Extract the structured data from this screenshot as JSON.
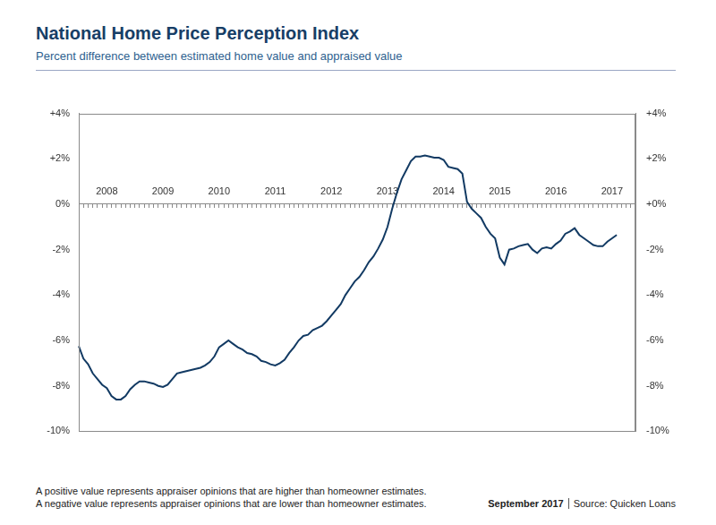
{
  "chart_data": {
    "type": "line",
    "title": "National Home Price Perception Index",
    "subtitle": "Percent difference between estimated home value and appraised value",
    "categories": [
      null,
      null,
      null,
      null,
      null,
      null,
      "2008",
      null,
      null,
      null,
      null,
      null,
      null,
      null,
      null,
      null,
      null,
      null,
      "2009",
      null,
      null,
      null,
      null,
      null,
      null,
      null,
      null,
      null,
      null,
      null,
      "2010",
      null,
      null,
      null,
      null,
      null,
      null,
      null,
      null,
      null,
      null,
      null,
      "2011",
      null,
      null,
      null,
      null,
      null,
      null,
      null,
      null,
      null,
      null,
      null,
      "2012",
      null,
      null,
      null,
      null,
      null,
      null,
      null,
      null,
      null,
      null,
      null,
      "2013",
      null,
      null,
      null,
      null,
      null,
      null,
      null,
      null,
      null,
      null,
      null,
      "2014",
      null,
      null,
      null,
      null,
      null,
      null,
      null,
      null,
      null,
      null,
      null,
      "2015",
      null,
      null,
      null,
      null,
      null,
      null,
      null,
      null,
      null,
      null,
      null,
      "2016",
      null,
      null,
      null,
      null,
      null,
      null,
      null,
      null,
      null,
      null,
      null,
      "2017",
      null,
      null,
      null,
      null,
      null
    ],
    "values": [
      -6.25,
      -6.8,
      -7.05,
      -7.45,
      -7.7,
      -7.95,
      -8.1,
      -8.45,
      -8.6,
      -8.6,
      -8.45,
      -8.15,
      -7.95,
      -7.8,
      -7.8,
      -7.85,
      -7.9,
      -8.0,
      -8.05,
      -7.95,
      -7.7,
      -7.45,
      -7.4,
      -7.35,
      -7.3,
      -7.25,
      -7.2,
      -7.1,
      -6.95,
      -6.7,
      -6.3,
      -6.15,
      -6.0,
      -6.15,
      -6.3,
      -6.4,
      -6.55,
      -6.6,
      -6.7,
      -6.9,
      -6.95,
      -7.05,
      -7.1,
      -7.0,
      -6.85,
      -6.55,
      -6.3,
      -6.0,
      -5.8,
      -5.75,
      -5.55,
      -5.45,
      -5.35,
      -5.15,
      -4.9,
      -4.65,
      -4.4,
      -4.0,
      -3.7,
      -3.4,
      -3.2,
      -2.9,
      -2.55,
      -2.3,
      -1.95,
      -1.55,
      -1.0,
      -0.2,
      0.5,
      1.1,
      1.5,
      1.9,
      2.1,
      2.1,
      2.15,
      2.1,
      2.05,
      2.05,
      1.95,
      1.65,
      1.6,
      1.55,
      1.35,
      0.1,
      -0.2,
      -0.4,
      -0.6,
      -1.0,
      -1.3,
      -1.5,
      -2.35,
      -2.65,
      -2.0,
      -1.95,
      -1.85,
      -1.8,
      -1.75,
      -2.0,
      -2.15,
      -1.95,
      -1.9,
      -1.95,
      -1.75,
      -1.6,
      -1.3,
      -1.2,
      -1.05,
      -1.35,
      -1.5,
      -1.65,
      -1.8,
      -1.85,
      -1.85,
      -1.65,
      -1.5,
      -1.35,
      null,
      null,
      null,
      null
    ],
    "color": "#123a63",
    "ylim": [
      -10,
      4
    ],
    "yticks": [
      {
        "value": -10,
        "label": "-10%"
      },
      {
        "value": -8,
        "label": "-8%"
      },
      {
        "value": -6,
        "label": "-6%"
      },
      {
        "value": -4,
        "label": "-4%"
      },
      {
        "value": -2,
        "label": "-2%"
      },
      {
        "value": 0,
        "label": "0%"
      },
      {
        "value": 2,
        "label": "+2%"
      },
      {
        "value": 4,
        "label": "+4%"
      }
    ],
    "y2lim": [
      -10,
      4
    ],
    "y2ticks": [
      {
        "value": -10,
        "label": "-10%"
      },
      {
        "value": -8,
        "label": "-8%"
      },
      {
        "value": -6,
        "label": "-6%"
      },
      {
        "value": -4,
        "label": "-4%"
      },
      {
        "value": -2,
        "label": "-2%"
      },
      {
        "value": 0,
        "label": "+0%"
      },
      {
        "value": 2,
        "label": "+2%"
      },
      {
        "value": 4,
        "label": "+4%"
      }
    ],
    "grid": false,
    "notes": [
      "A positive value represents appraiser opinions that are higher than homeowner estimates.",
      "A negative value represents appraiser opinions that are lower than homeowner estimates."
    ],
    "date": "September 2017",
    "source": "Source: Quicken Loans"
  }
}
